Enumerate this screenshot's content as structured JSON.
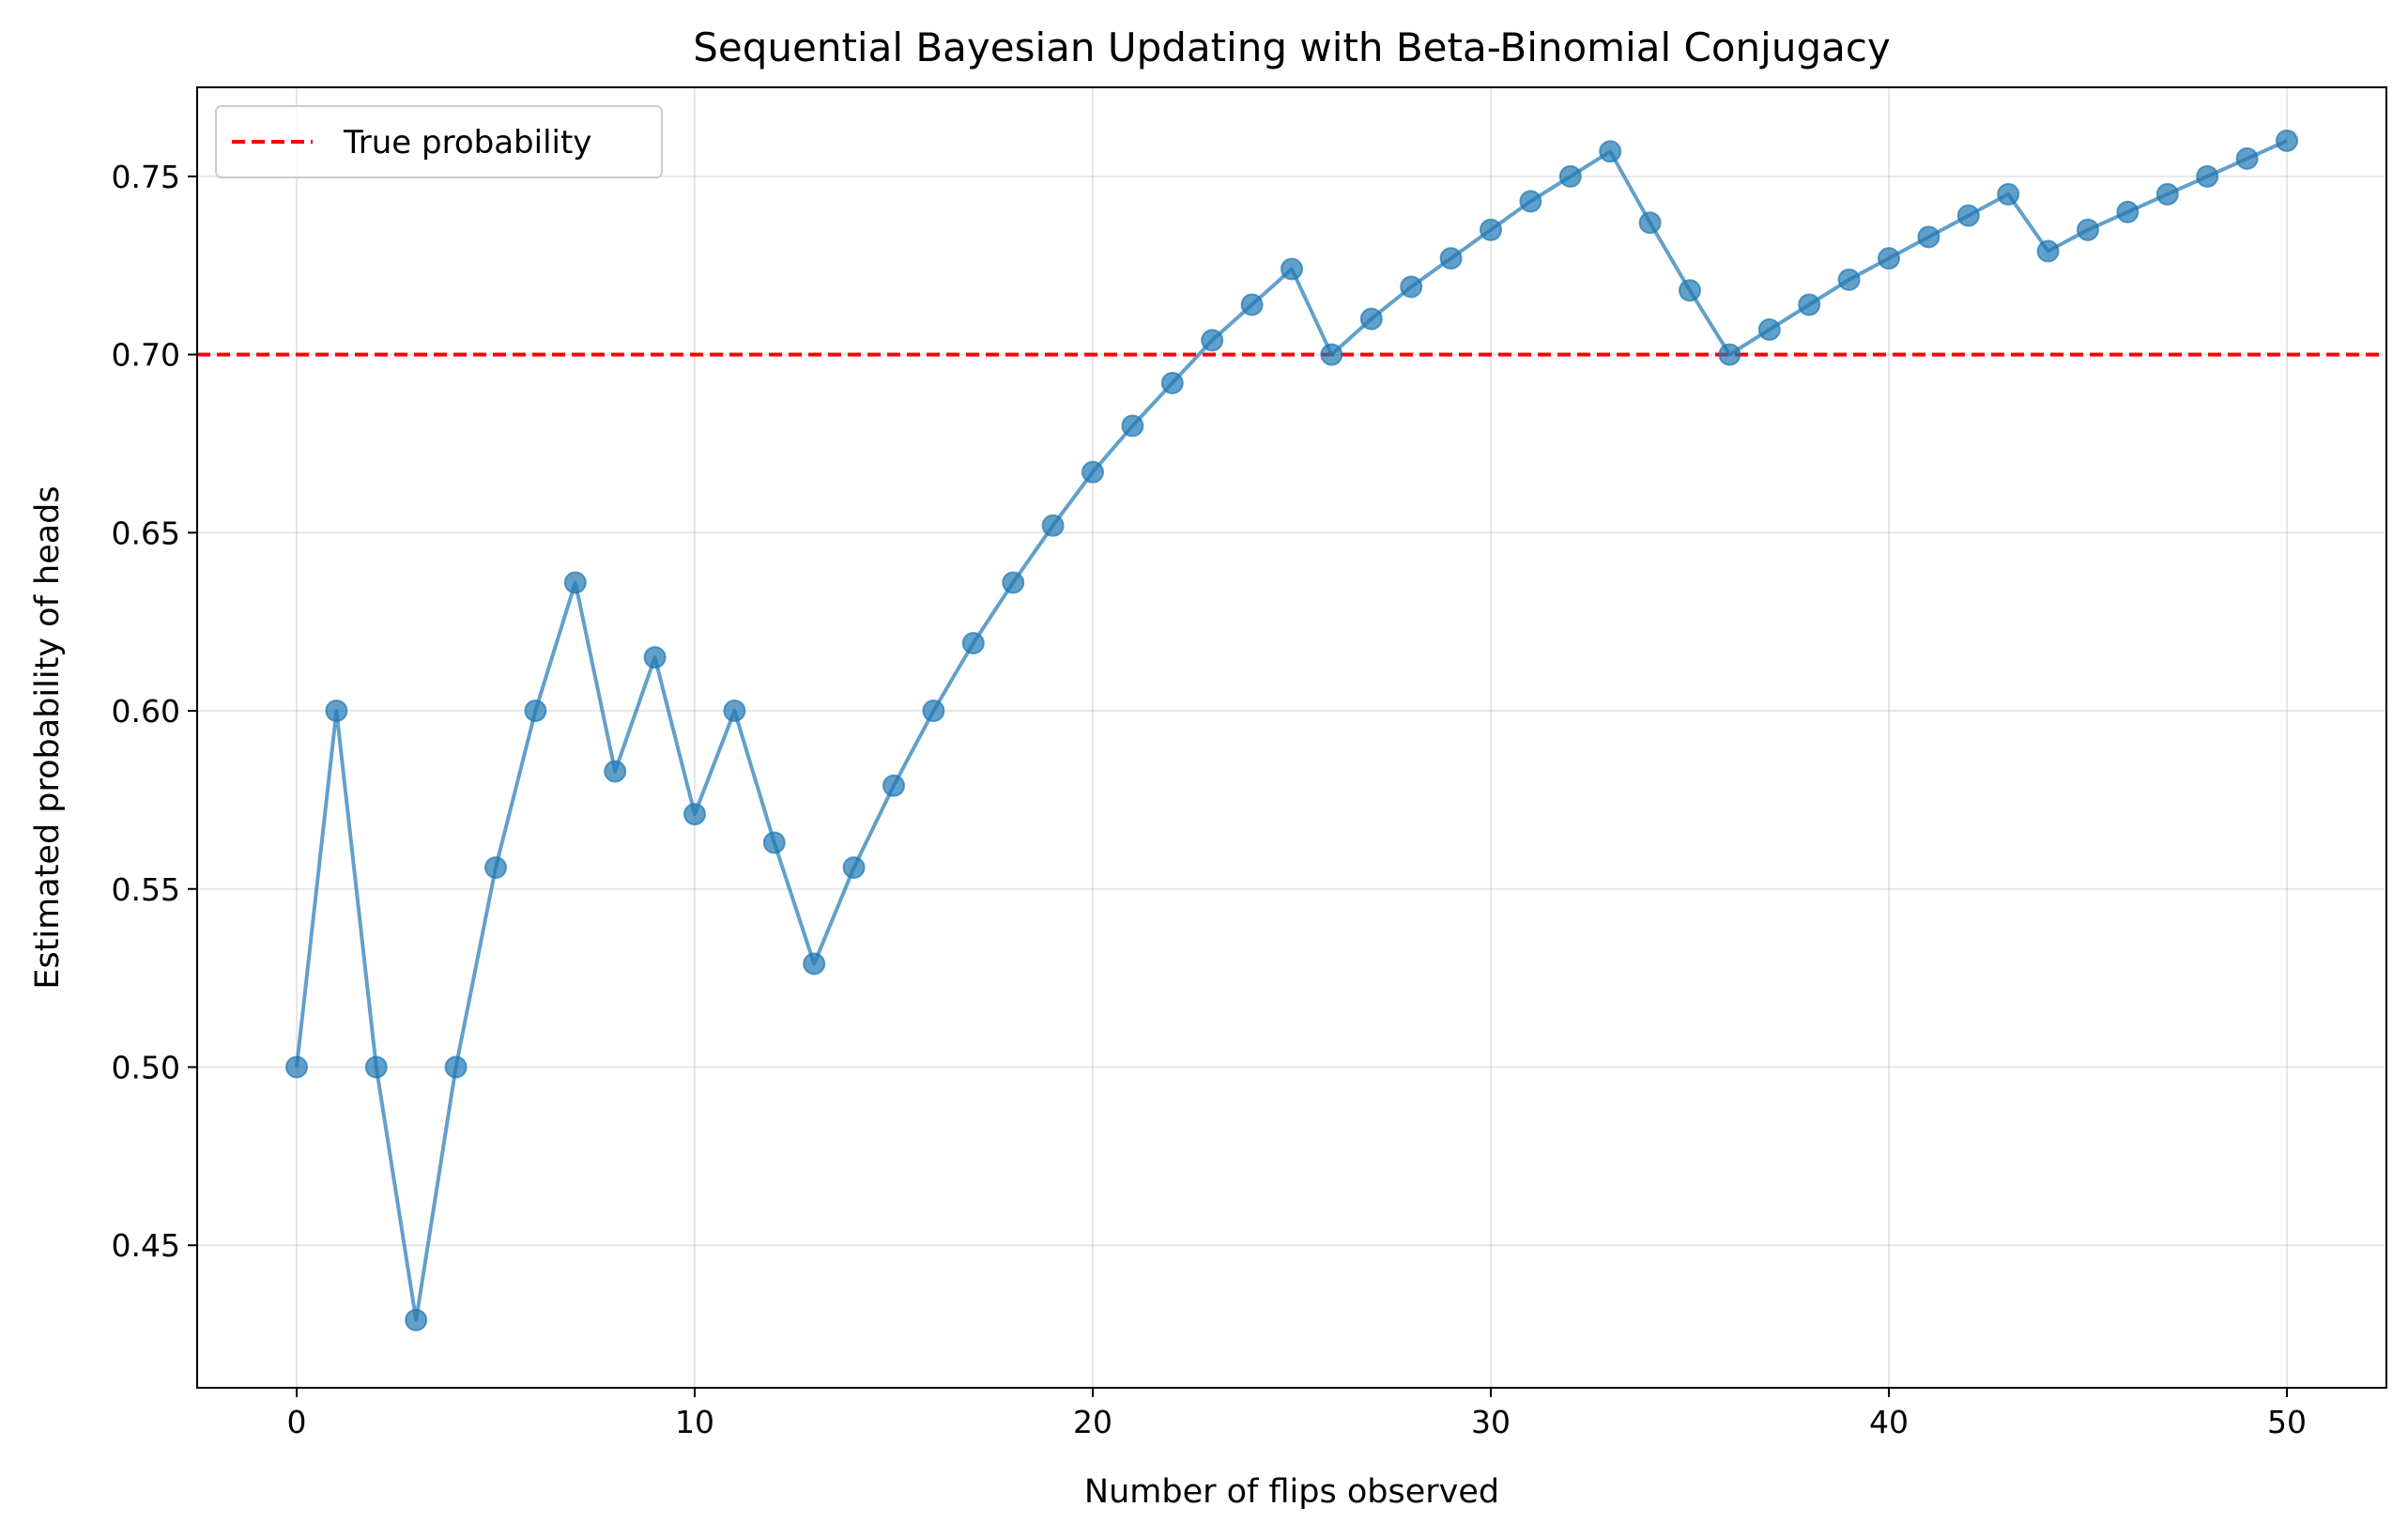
{
  "chart_data": {
    "type": "line",
    "title": "Sequential Bayesian Updating with Beta-Binomial Conjugacy",
    "xlabel": "Number of flips observed",
    "ylabel": "Estimated probability of heads",
    "xlim": [
      -2.5,
      52.5
    ],
    "ylim": [
      0.41,
      0.775
    ],
    "xticks": [
      0,
      10,
      20,
      30,
      40,
      50
    ],
    "yticks": [
      0.45,
      0.5,
      0.55,
      0.6,
      0.65,
      0.7,
      0.75
    ],
    "ytick_labels": [
      "0.45",
      "0.50",
      "0.55",
      "0.60",
      "0.65",
      "0.70",
      "0.75"
    ],
    "grid": true,
    "legend_position": "upper-left",
    "series": [
      {
        "color": "#1f77b4",
        "marker": "circle",
        "x": [
          0,
          1,
          2,
          3,
          4,
          5,
          6,
          7,
          8,
          9,
          10,
          11,
          12,
          13,
          14,
          15,
          16,
          17,
          18,
          19,
          20,
          21,
          22,
          23,
          24,
          25,
          26,
          27,
          28,
          29,
          30,
          31,
          32,
          33,
          34,
          35,
          36,
          37,
          38,
          39,
          40,
          41,
          42,
          43,
          44,
          45,
          46,
          47,
          48,
          49,
          50
        ],
        "y": [
          0.5,
          0.6,
          0.5,
          0.429,
          0.5,
          0.556,
          0.6,
          0.636,
          0.583,
          0.615,
          0.571,
          0.6,
          0.563,
          0.529,
          0.556,
          0.579,
          0.6,
          0.619,
          0.636,
          0.652,
          0.667,
          0.68,
          0.692,
          0.704,
          0.714,
          0.724,
          0.7,
          0.71,
          0.719,
          0.727,
          0.735,
          0.743,
          0.75,
          0.757,
          0.737,
          0.718,
          0.7,
          0.707,
          0.714,
          0.721,
          0.727,
          0.733,
          0.739,
          0.745,
          0.729,
          0.735,
          0.74,
          0.745,
          0.75,
          0.755,
          0.76
        ]
      }
    ],
    "reference_line": {
      "name": "True probability",
      "y": 0.7,
      "color": "#ff0000",
      "style": "dashed"
    }
  }
}
